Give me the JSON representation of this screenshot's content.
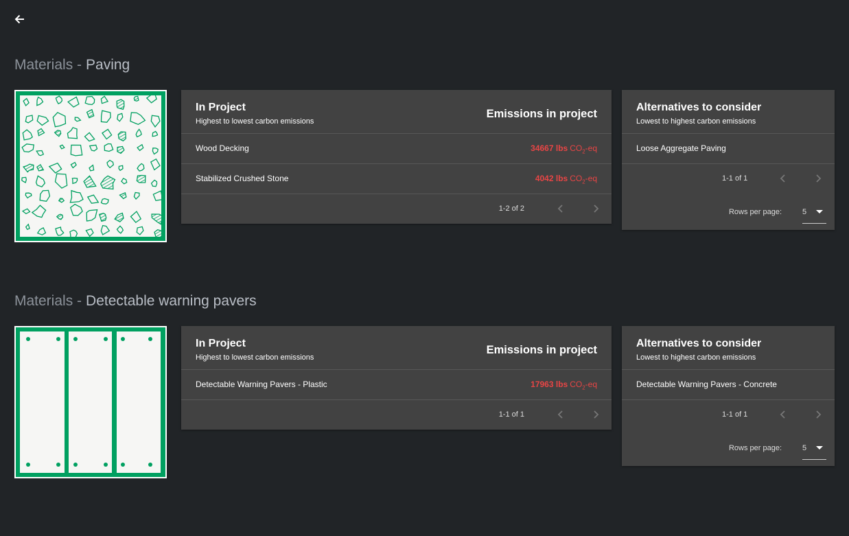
{
  "sections": [
    {
      "heading_prefix": "Materials -",
      "heading_name": "Paving",
      "in_project": {
        "title": "In Project",
        "subtitle": "Highest to lowest carbon emissions",
        "column": "Emissions in project",
        "rows": [
          {
            "name": "Wood Decking",
            "amount": "34667 lbs",
            "unit": {
              "base": "CO",
              "sub": "2",
              "suffix": "-eq"
            }
          },
          {
            "name": "Stabilized Crushed Stone",
            "amount": "4042 lbs",
            "unit": {
              "base": "CO",
              "sub": "2",
              "suffix": "-eq"
            }
          }
        ],
        "pagination": "1-2 of 2"
      },
      "alternatives": {
        "title": "Alternatives to consider",
        "subtitle": "Lowest to highest carbon emissions",
        "rows": [
          {
            "name": "Loose Aggregate Paving"
          }
        ],
        "pagination": "1-1 of 1",
        "rows_per_page_label": "Rows per page:",
        "rows_per_page": "5"
      }
    },
    {
      "heading_prefix": "Materials -",
      "heading_name": "Detectable warning pavers",
      "in_project": {
        "title": "In Project",
        "subtitle": "Highest to lowest carbon emissions",
        "column": "Emissions in project",
        "rows": [
          {
            "name": "Detectable Warning Pavers - Plastic",
            "amount": "17963 lbs",
            "unit": {
              "base": "CO",
              "sub": "2",
              "suffix": "-eq"
            }
          }
        ],
        "pagination": "1-1 of 1"
      },
      "alternatives": {
        "title": "Alternatives to consider",
        "subtitle": "Lowest to highest carbon emissions",
        "rows": [
          {
            "name": "Detectable Warning Pavers - Concrete"
          }
        ],
        "pagination": "1-1 of 1",
        "rows_per_page_label": "Rows per page:",
        "rows_per_page": "5"
      }
    }
  ]
}
